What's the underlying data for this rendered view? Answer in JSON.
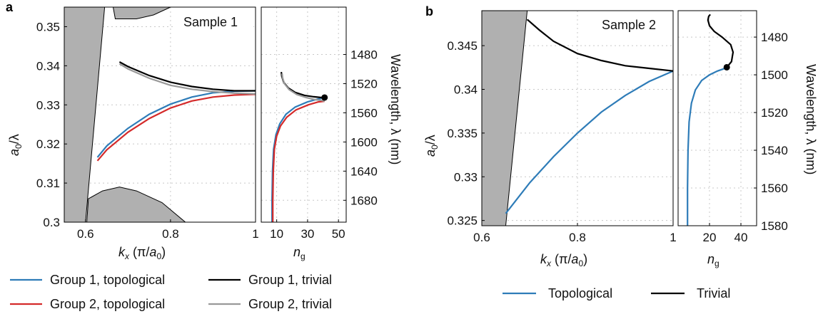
{
  "figure": {
    "panel_a_letter": "a",
    "panel_b_letter": "b"
  },
  "colors": {
    "topo1": "#2e7cb8",
    "topo2": "#d42a2a",
    "triv1": "#000000",
    "triv2": "#999999",
    "band_fill": "#b0b0b0"
  },
  "chart_data": [
    {
      "id": "a_dispersion",
      "type": "line",
      "sample_label": "Sample 1",
      "xlabel": "k_x (π/a_0)",
      "ylabel": "a_0/λ",
      "xlim": [
        0.55,
        1.0
      ],
      "ylim": [
        0.3,
        0.355
      ],
      "xticks": [
        "0.6",
        "0.8",
        "1"
      ],
      "yticks": [
        "0.3",
        "0.31",
        "0.32",
        "0.33",
        "0.34",
        "0.35"
      ],
      "grid": true,
      "shaded_regions": [
        {
          "name": "light cone",
          "points": [
            [
              0.55,
              0.3
            ],
            [
              0.6,
              0.3
            ],
            [
              0.645,
              0.355
            ],
            [
              0.55,
              0.355
            ]
          ]
        },
        {
          "name": "upper bulk band",
          "points": [
            [
              0.665,
              0.355
            ],
            [
              0.67,
              0.352
            ],
            [
              0.72,
              0.352
            ],
            [
              0.76,
              0.353
            ],
            [
              0.8,
              0.355
            ]
          ]
        },
        {
          "name": "lower bulk band",
          "points": [
            [
              0.603,
              0.3
            ],
            [
              0.607,
              0.306
            ],
            [
              0.64,
              0.308
            ],
            [
              0.68,
              0.309
            ],
            [
              0.72,
              0.308
            ],
            [
              0.78,
              0.305
            ],
            [
              0.835,
              0.3
            ]
          ]
        }
      ],
      "series": [
        {
          "name": "Group 1, topological",
          "x": [
            0.628,
            0.65,
            0.7,
            0.75,
            0.8,
            0.85,
            0.9,
            0.95,
            1.0
          ],
          "y": [
            0.3166,
            0.3195,
            0.324,
            0.3276,
            0.3302,
            0.332,
            0.3331,
            0.3335,
            0.3336
          ]
        },
        {
          "name": "Group 2, topological",
          "x": [
            0.628,
            0.65,
            0.7,
            0.75,
            0.8,
            0.85,
            0.9,
            0.95,
            1.0
          ],
          "y": [
            0.3157,
            0.3185,
            0.323,
            0.3265,
            0.3292,
            0.331,
            0.332,
            0.3325,
            0.3327
          ]
        },
        {
          "name": "Group 1, trivial",
          "x": [
            0.68,
            0.7,
            0.75,
            0.8,
            0.85,
            0.9,
            0.95,
            1.0
          ],
          "y": [
            0.341,
            0.3398,
            0.3375,
            0.3358,
            0.3347,
            0.334,
            0.3336,
            0.3336
          ]
        },
        {
          "name": "Group 2, trivial",
          "x": [
            0.68,
            0.7,
            0.75,
            0.8,
            0.85,
            0.9,
            0.95,
            1.0
          ],
          "y": [
            0.3405,
            0.3392,
            0.3368,
            0.335,
            0.334,
            0.3334,
            0.333,
            0.3328
          ]
        }
      ]
    },
    {
      "id": "a_group_index",
      "type": "line",
      "xlabel": "n_g",
      "ylabel_right": "Wavelength, λ (nm)",
      "xlim": [
        0,
        55
      ],
      "ylim_wavelength": [
        1710,
        1415
      ],
      "xticks": [
        "10",
        "30",
        "50"
      ],
      "yticks_right": [
        "1480",
        "1520",
        "1560",
        "1600",
        "1640",
        "1680"
      ],
      "grid": true,
      "series": [
        {
          "name": "Group 1, topological",
          "n_g": [
            7.0,
            7.0,
            7.3,
            8.0,
            9.5,
            12.0,
            16.0,
            22.0,
            30.0,
            37.0,
            41.0
          ],
          "wavelength": [
            1710,
            1680,
            1640,
            1610,
            1590,
            1575,
            1562,
            1552,
            1545,
            1541,
            1539
          ]
        },
        {
          "name": "Group 2, topological",
          "n_g": [
            7.5,
            7.5,
            7.8,
            8.5,
            10.0,
            12.5,
            16.5,
            22.5,
            30.5,
            37.0,
            41.0
          ],
          "wavelength": [
            1710,
            1680,
            1640,
            1610,
            1592,
            1578,
            1566,
            1556,
            1549,
            1545,
            1544
          ]
        },
        {
          "name": "Group 1, trivial",
          "n_g": [
            13.0,
            13.3,
            14.5,
            17.5,
            22.0,
            28.0,
            34.0,
            38.5,
            41.0
          ],
          "wavelength": [
            1504,
            1510,
            1518,
            1526,
            1532,
            1536,
            1538,
            1539,
            1539
          ]
        },
        {
          "name": "Group 2, trivial",
          "n_g": [
            13.5,
            13.8,
            15.0,
            18.0,
            23.0,
            29.0,
            35.0,
            39.0,
            41.0
          ],
          "wavelength": [
            1506,
            1512,
            1520,
            1528,
            1535,
            1539,
            1542,
            1543,
            1544
          ]
        }
      ],
      "markers": [
        {
          "n_g": 41.0,
          "wavelength": 1539
        }
      ]
    },
    {
      "id": "b_dispersion",
      "type": "line",
      "sample_label": "Sample 2",
      "xlabel": "k_x (π/a_0)",
      "ylabel": "a_0/λ",
      "xlim": [
        0.6,
        1.0
      ],
      "ylim": [
        0.3244,
        0.349
      ],
      "xticks": [
        "0.6",
        "0.8",
        "1"
      ],
      "yticks": [
        "0.325",
        "0.33",
        "0.335",
        "0.34",
        "0.345"
      ],
      "grid": true,
      "shaded_regions": [
        {
          "name": "light cone",
          "points": [
            [
              0.6,
              0.3244
            ],
            [
              0.65,
              0.3244
            ],
            [
              0.695,
              0.349
            ],
            [
              0.6,
              0.349
            ]
          ]
        }
      ],
      "series": [
        {
          "name": "Topological",
          "x": [
            0.65,
            0.7,
            0.75,
            0.8,
            0.85,
            0.9,
            0.95,
            1.0
          ],
          "y": [
            0.3258,
            0.3293,
            0.3323,
            0.335,
            0.3374,
            0.3393,
            0.3409,
            0.3421
          ]
        },
        {
          "name": "Trivial",
          "x": [
            0.695,
            0.72,
            0.75,
            0.8,
            0.85,
            0.9,
            0.95,
            1.0
          ],
          "y": [
            0.348,
            0.3468,
            0.3455,
            0.3441,
            0.3433,
            0.3427,
            0.3424,
            0.3421
          ]
        }
      ]
    },
    {
      "id": "b_group_index",
      "type": "line",
      "xlabel": "n_g",
      "ylabel_right": "Wavelength, λ (nm)",
      "xlim": [
        0,
        50
      ],
      "ylim_wavelength": [
        1580,
        1466
      ],
      "xticks": [
        "20",
        "40"
      ],
      "yticks_right": [
        "1480",
        "1500",
        "1520",
        "1540",
        "1560",
        "1580"
      ],
      "grid": true,
      "series": [
        {
          "name": "Topological",
          "n_g": [
            6.0,
            6.0,
            6.3,
            7.0,
            8.5,
            11.0,
            15.0,
            20.0,
            25.0,
            28.5,
            31.0
          ],
          "wavelength": [
            1580,
            1560,
            1540,
            1525,
            1515,
            1508,
            1503,
            1500,
            1498,
            1497,
            1496
          ]
        },
        {
          "name": "Trivial",
          "n_g": [
            31.0,
            34.0,
            35.0,
            33.5,
            28.0,
            23.0,
            20.0,
            19.0,
            19.5,
            20.5
          ],
          "wavelength": [
            1496,
            1493,
            1488,
            1484,
            1480,
            1477,
            1474,
            1471,
            1469,
            1468
          ]
        }
      ],
      "markers": [
        {
          "n_g": 31.0,
          "wavelength": 1496
        }
      ]
    }
  ],
  "legend_a": [
    {
      "label": "Group 1, topological",
      "color_key": "topo1"
    },
    {
      "label": "Group 1, trivial",
      "color_key": "triv1"
    },
    {
      "label": "Group 2, topological",
      "color_key": "topo2"
    },
    {
      "label": "Group 2, trivial",
      "color_key": "triv2"
    }
  ],
  "legend_b": [
    {
      "label": "Topological",
      "color_key": "topo1"
    },
    {
      "label": "Trivial",
      "color_key": "triv1"
    }
  ]
}
